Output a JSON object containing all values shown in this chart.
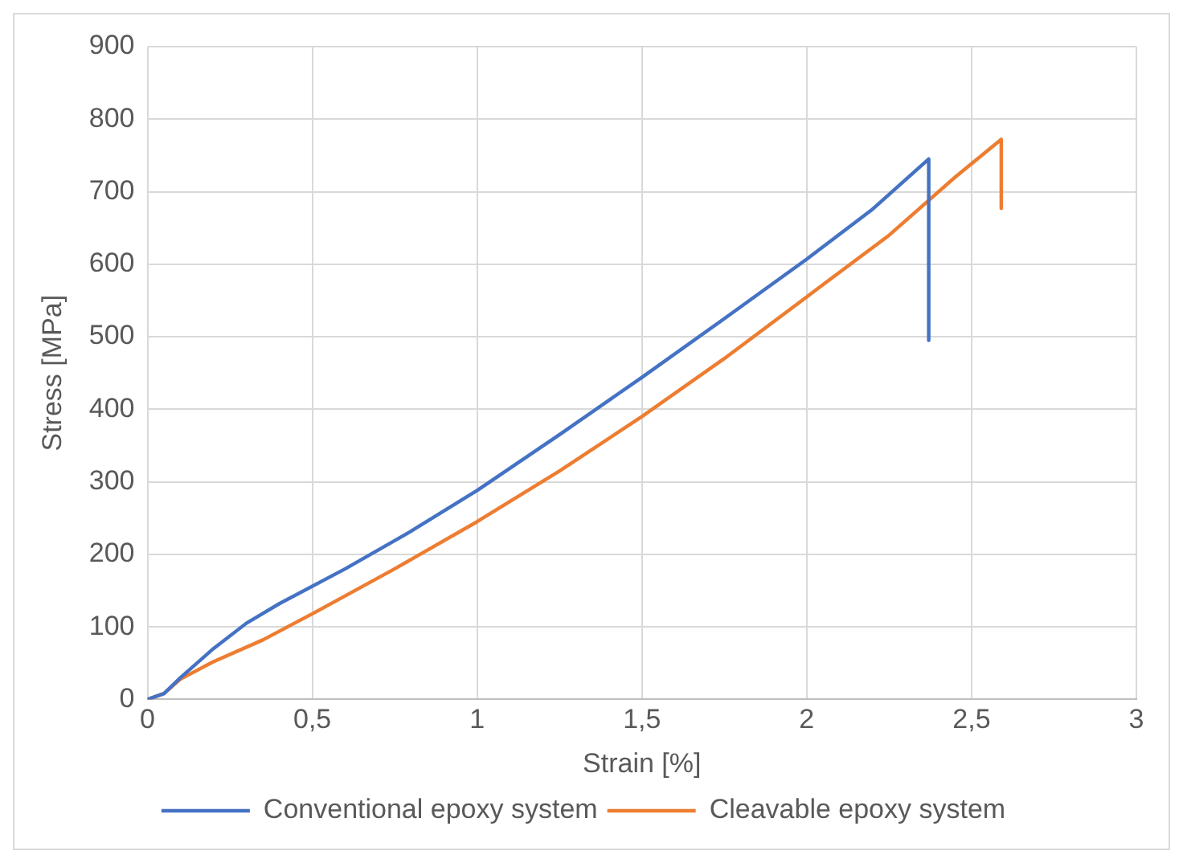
{
  "chart_data": {
    "type": "line",
    "xlabel": "Strain [%]",
    "ylabel": "Stress [MPa]",
    "xlim": [
      0,
      3
    ],
    "xticks": [
      0,
      {
        "value": 0.5,
        "label": "0,5"
      },
      1,
      {
        "value": 1.5,
        "label": "1,5"
      },
      2,
      {
        "value": 2.5,
        "label": "2,5"
      },
      3
    ],
    "ylim": [
      0,
      900
    ],
    "yticks": [
      0,
      100,
      200,
      300,
      400,
      500,
      600,
      700,
      800,
      900
    ],
    "grid": true,
    "legend": "bottom",
    "marker": "none",
    "series": [
      {
        "name": "Conventional epoxy system",
        "color": "#4472c4",
        "x": [
          0,
          0.05,
          0.1,
          0.2,
          0.3,
          0.4,
          0.6,
          0.8,
          1,
          1.25,
          1.5,
          1.75,
          2,
          2.2,
          2.37,
          2.37
        ],
        "values": [
          0,
          8,
          30,
          70,
          105,
          132,
          180,
          232,
          288,
          365,
          444,
          525,
          607,
          676,
          745,
          495
        ]
      },
      {
        "name": "Cleavable epoxy system",
        "color": "#ed7d31",
        "x": [
          0,
          0.05,
          0.1,
          0.2,
          0.35,
          0.5,
          0.75,
          1,
          1.25,
          1.5,
          1.75,
          2,
          2.25,
          2.45,
          2.59,
          2.59
        ],
        "values": [
          0,
          8,
          28,
          52,
          82,
          118,
          180,
          245,
          315,
          390,
          470,
          555,
          640,
          720,
          772,
          677
        ]
      }
    ]
  }
}
